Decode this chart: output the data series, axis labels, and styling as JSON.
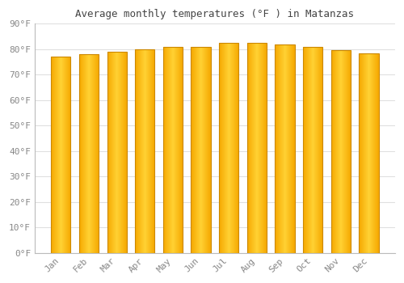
{
  "title": "Average monthly temperatures (°F ) in Matanzas",
  "months": [
    "Jan",
    "Feb",
    "Mar",
    "Apr",
    "May",
    "Jun",
    "Jul",
    "Aug",
    "Sep",
    "Oct",
    "Nov",
    "Dec"
  ],
  "values": [
    77,
    78,
    79,
    80,
    81,
    81,
    82.5,
    82.5,
    82,
    81,
    79.5,
    78.5
  ],
  "bar_color_center": "#FFD133",
  "bar_color_edge": "#F5A800",
  "background_color": "#FFFFFF",
  "plot_bg_color": "#FFFFFF",
  "grid_color": "#E0E0E0",
  "text_color": "#888888",
  "title_color": "#444444",
  "ylim": [
    0,
    90
  ],
  "yticks": [
    0,
    10,
    20,
    30,
    40,
    50,
    60,
    70,
    80,
    90
  ],
  "bar_width": 0.7,
  "figsize": [
    5.0,
    3.5
  ],
  "dpi": 100
}
